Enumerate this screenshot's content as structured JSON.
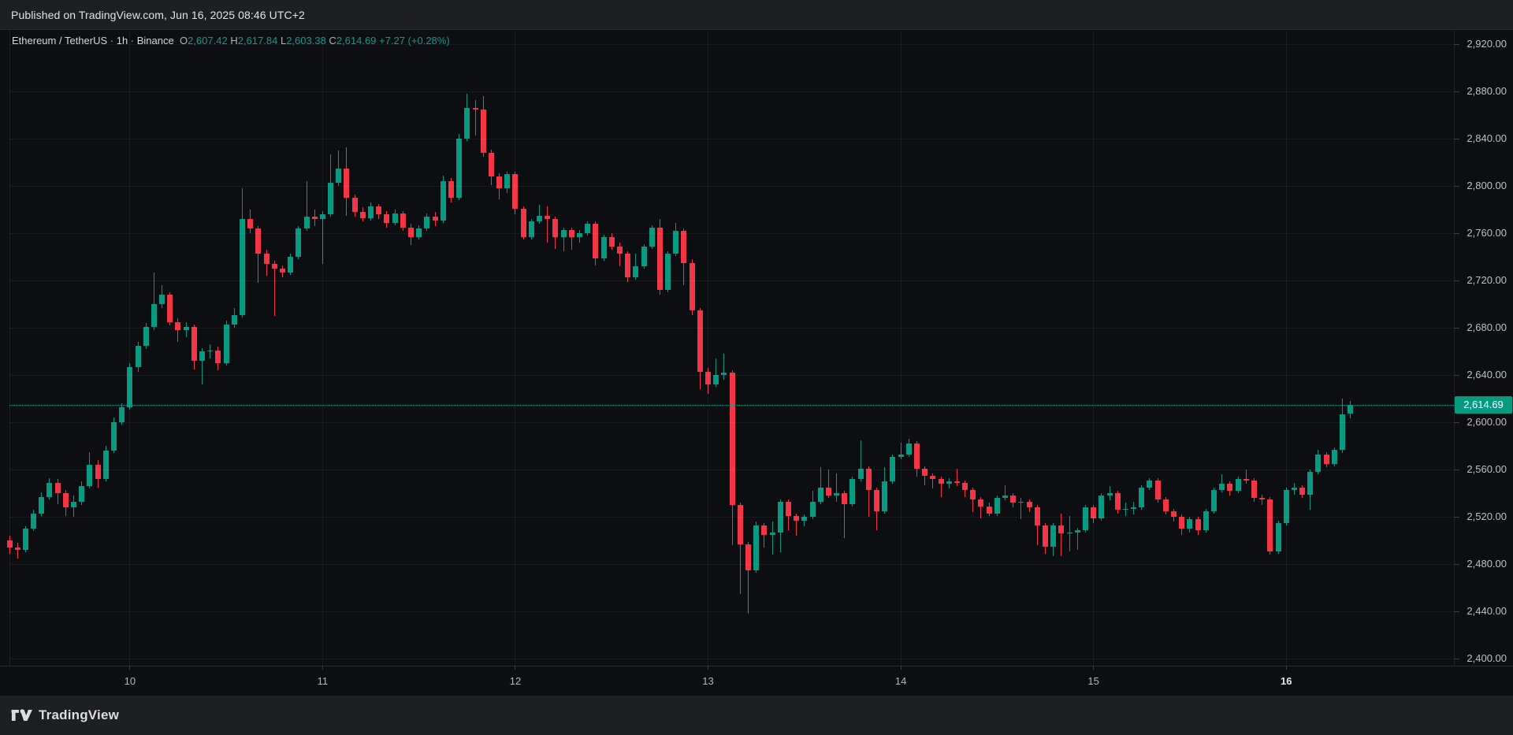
{
  "page": {
    "published_bar": "Published on TradingView.com, Jun 16, 2025 08:46 UTC+2",
    "footer_brand": "TradingView"
  },
  "chart": {
    "legend": {
      "symbol": "Ethereum / TetherUS",
      "sep1": " · ",
      "interval": "1h",
      "sep2": " · ",
      "exchange": "Binance",
      "o_label": "O",
      "o_value": "2,607.42",
      "h_label": "H",
      "h_value": "2,617.84",
      "l_label": "L",
      "l_value": "2,603.38",
      "c_label": "C",
      "c_value": "2,614.69",
      "change": "+7.27 (+0.28%)"
    },
    "last_price": {
      "value": "2,614.69",
      "price": 2614.69
    },
    "colors": {
      "up": "#089981",
      "down": "#F23645",
      "badge_bg": "#089981",
      "badge_text": "#ffffff",
      "accent_text": "#0b9e87"
    },
    "price_axis": {
      "labels": [
        "2,920.00",
        "2,880.00",
        "2,840.00",
        "2,800.00",
        "2,760.00",
        "2,720.00",
        "2,680.00",
        "2,640.00",
        "2,600.00",
        "2,560.00",
        "2,520.00",
        "2,480.00",
        "2,440.00",
        "2,400.00"
      ],
      "values": [
        2920,
        2880,
        2840,
        2800,
        2760,
        2720,
        2680,
        2640,
        2600,
        2560,
        2520,
        2480,
        2440,
        2400
      ]
    },
    "time_axis": {
      "labels": [
        {
          "text": "10",
          "bold": false
        },
        {
          "text": "11",
          "bold": false
        },
        {
          "text": "12",
          "bold": false
        },
        {
          "text": "13",
          "bold": false
        },
        {
          "text": "14",
          "bold": false
        },
        {
          "text": "15",
          "bold": false
        },
        {
          "text": "16",
          "bold": true
        }
      ],
      "bar_indices": [
        15,
        39,
        63,
        87,
        111,
        135,
        159
      ]
    }
  },
  "chart_data": {
    "type": "candlestick",
    "title": "Ethereum / TetherUS · 1h · Binance",
    "interval": "1h",
    "x_description": "Hourly bars, Jun 9 09:00 to Jun 16 08:00 (day-of-month ticks 10-16)",
    "ylim": [
      2394,
      2936
    ],
    "grid": true,
    "last_close": 2614.69,
    "ohlc": [
      [
        2500,
        2504,
        2489,
        2494
      ],
      [
        2494,
        2498,
        2485,
        2492
      ],
      [
        2492,
        2512,
        2490,
        2510
      ],
      [
        2510,
        2526,
        2508,
        2523
      ],
      [
        2523,
        2541,
        2521,
        2537
      ],
      [
        2537,
        2553,
        2535,
        2549
      ],
      [
        2549,
        2552,
        2531,
        2540
      ],
      [
        2540,
        2543,
        2521,
        2528
      ],
      [
        2528,
        2538,
        2520,
        2533
      ],
      [
        2533,
        2550,
        2530,
        2546
      ],
      [
        2546,
        2575,
        2544,
        2564
      ],
      [
        2564,
        2568,
        2545,
        2552
      ],
      [
        2552,
        2580,
        2550,
        2576
      ],
      [
        2576,
        2604,
        2574,
        2600
      ],
      [
        2600,
        2616,
        2598,
        2613
      ],
      [
        2613,
        2650,
        2611,
        2647
      ],
      [
        2647,
        2668,
        2643,
        2665
      ],
      [
        2665,
        2684,
        2662,
        2681
      ],
      [
        2681,
        2727,
        2678,
        2700
      ],
      [
        2700,
        2716,
        2697,
        2708
      ],
      [
        2708,
        2710,
        2682,
        2685
      ],
      [
        2685,
        2688,
        2668,
        2678
      ],
      [
        2678,
        2685,
        2672,
        2681
      ],
      [
        2681,
        2683,
        2645,
        2652
      ],
      [
        2652,
        2663,
        2632,
        2660
      ],
      [
        2660,
        2666,
        2654,
        2661
      ],
      [
        2661,
        2664,
        2644,
        2650
      ],
      [
        2650,
        2686,
        2648,
        2683
      ],
      [
        2683,
        2697,
        2680,
        2691
      ],
      [
        2691,
        2798,
        2689,
        2772
      ],
      [
        2772,
        2780,
        2760,
        2764
      ],
      [
        2764,
        2766,
        2718,
        2743
      ],
      [
        2743,
        2746,
        2724,
        2734
      ],
      [
        2734,
        2737,
        2690,
        2730
      ],
      [
        2730,
        2733,
        2723,
        2727
      ],
      [
        2727,
        2743,
        2725,
        2740
      ],
      [
        2740,
        2766,
        2738,
        2764
      ],
      [
        2764,
        2804,
        2762,
        2774
      ],
      [
        2774,
        2780,
        2766,
        2772
      ],
      [
        2772,
        2779,
        2734,
        2776
      ],
      [
        2776,
        2827,
        2774,
        2803
      ],
      [
        2803,
        2830,
        2800,
        2815
      ],
      [
        2815,
        2833,
        2775,
        2790
      ],
      [
        2790,
        2793,
        2774,
        2778
      ],
      [
        2778,
        2782,
        2770,
        2773
      ],
      [
        2773,
        2786,
        2771,
        2783
      ],
      [
        2783,
        2785,
        2772,
        2776
      ],
      [
        2776,
        2779,
        2765,
        2769
      ],
      [
        2769,
        2780,
        2767,
        2777
      ],
      [
        2777,
        2779,
        2762,
        2765
      ],
      [
        2765,
        2768,
        2750,
        2757
      ],
      [
        2757,
        2767,
        2755,
        2764
      ],
      [
        2764,
        2777,
        2762,
        2774
      ],
      [
        2774,
        2778,
        2766,
        2771
      ],
      [
        2771,
        2809,
        2769,
        2804
      ],
      [
        2804,
        2807,
        2786,
        2790
      ],
      [
        2790,
        2844,
        2788,
        2840
      ],
      [
        2840,
        2878,
        2838,
        2866
      ],
      [
        2866,
        2873,
        2843,
        2865
      ],
      [
        2865,
        2876,
        2825,
        2828
      ],
      [
        2828,
        2831,
        2801,
        2808
      ],
      [
        2808,
        2811,
        2789,
        2798
      ],
      [
        2798,
        2812,
        2794,
        2810
      ],
      [
        2810,
        2812,
        2776,
        2781
      ],
      [
        2781,
        2783,
        2755,
        2757
      ],
      [
        2757,
        2772,
        2755,
        2770
      ],
      [
        2770,
        2784,
        2768,
        2775
      ],
      [
        2775,
        2783,
        2752,
        2772
      ],
      [
        2772,
        2774,
        2747,
        2757
      ],
      [
        2757,
        2765,
        2745,
        2763
      ],
      [
        2763,
        2765,
        2746,
        2757
      ],
      [
        2757,
        2763,
        2752,
        2760
      ],
      [
        2760,
        2770,
        2758,
        2768
      ],
      [
        2768,
        2770,
        2733,
        2739
      ],
      [
        2739,
        2759,
        2737,
        2757
      ],
      [
        2757,
        2760,
        2746,
        2749
      ],
      [
        2749,
        2752,
        2732,
        2743
      ],
      [
        2743,
        2745,
        2719,
        2723
      ],
      [
        2723,
        2743,
        2721,
        2732
      ],
      [
        2732,
        2751,
        2730,
        2749
      ],
      [
        2749,
        2767,
        2747,
        2765
      ],
      [
        2765,
        2772,
        2708,
        2712
      ],
      [
        2712,
        2745,
        2710,
        2743
      ],
      [
        2743,
        2769,
        2741,
        2762
      ],
      [
        2762,
        2764,
        2716,
        2735
      ],
      [
        2735,
        2738,
        2691,
        2695
      ],
      [
        2695,
        2697,
        2628,
        2643
      ],
      [
        2643,
        2646,
        2624,
        2632
      ],
      [
        2632,
        2654,
        2630,
        2640
      ],
      [
        2640,
        2658,
        2636,
        2642
      ],
      [
        2642,
        2644,
        2496,
        2530
      ],
      [
        2530,
        2532,
        2455,
        2497
      ],
      [
        2497,
        2499,
        2438,
        2475
      ],
      [
        2475,
        2516,
        2473,
        2513
      ],
      [
        2513,
        2515,
        2494,
        2505
      ],
      [
        2505,
        2516,
        2488,
        2507
      ],
      [
        2507,
        2535,
        2490,
        2533
      ],
      [
        2533,
        2535,
        2509,
        2521
      ],
      [
        2521,
        2523,
        2504,
        2517
      ],
      [
        2517,
        2522,
        2512,
        2520
      ],
      [
        2520,
        2542,
        2518,
        2533
      ],
      [
        2533,
        2562,
        2531,
        2545
      ],
      [
        2545,
        2560,
        2536,
        2538
      ],
      [
        2538,
        2557,
        2533,
        2540
      ],
      [
        2540,
        2542,
        2502,
        2531
      ],
      [
        2531,
        2554,
        2529,
        2552
      ],
      [
        2552,
        2585,
        2550,
        2561
      ],
      [
        2561,
        2563,
        2520,
        2543
      ],
      [
        2543,
        2545,
        2509,
        2525
      ],
      [
        2525,
        2562,
        2523,
        2550
      ],
      [
        2550,
        2573,
        2548,
        2571
      ],
      [
        2571,
        2583,
        2569,
        2573
      ],
      [
        2573,
        2586,
        2571,
        2582
      ],
      [
        2582,
        2584,
        2554,
        2561
      ],
      [
        2561,
        2563,
        2547,
        2555
      ],
      [
        2555,
        2557,
        2544,
        2552
      ],
      [
        2552,
        2554,
        2537,
        2548
      ],
      [
        2548,
        2553,
        2544,
        2550
      ],
      [
        2550,
        2561,
        2546,
        2549
      ],
      [
        2549,
        2551,
        2537,
        2543
      ],
      [
        2543,
        2545,
        2524,
        2535
      ],
      [
        2535,
        2537,
        2519,
        2529
      ],
      [
        2529,
        2532,
        2521,
        2523
      ],
      [
        2523,
        2538,
        2521,
        2536
      ],
      [
        2536,
        2547,
        2534,
        2538
      ],
      [
        2538,
        2540,
        2528,
        2532
      ],
      [
        2532,
        2536,
        2518,
        2533
      ],
      [
        2533,
        2535,
        2524,
        2528
      ],
      [
        2528,
        2530,
        2496,
        2513
      ],
      [
        2513,
        2515,
        2489,
        2495
      ],
      [
        2495,
        2515,
        2487,
        2513
      ],
      [
        2513,
        2523,
        2487,
        2506
      ],
      [
        2506,
        2521,
        2491,
        2507
      ],
      [
        2507,
        2511,
        2492,
        2509
      ],
      [
        2509,
        2530,
        2507,
        2528
      ],
      [
        2528,
        2530,
        2515,
        2519
      ],
      [
        2519,
        2540,
        2517,
        2538
      ],
      [
        2538,
        2546,
        2534,
        2540
      ],
      [
        2540,
        2542,
        2523,
        2526
      ],
      [
        2526,
        2532,
        2521,
        2527
      ],
      [
        2527,
        2533,
        2522,
        2528
      ],
      [
        2528,
        2547,
        2526,
        2545
      ],
      [
        2545,
        2553,
        2543,
        2551
      ],
      [
        2551,
        2553,
        2532,
        2535
      ],
      [
        2535,
        2537,
        2522,
        2525
      ],
      [
        2525,
        2527,
        2516,
        2520
      ],
      [
        2520,
        2522,
        2505,
        2510
      ],
      [
        2510,
        2520,
        2507,
        2518
      ],
      [
        2518,
        2520,
        2505,
        2509
      ],
      [
        2509,
        2527,
        2507,
        2525
      ],
      [
        2525,
        2545,
        2523,
        2543
      ],
      [
        2543,
        2556,
        2541,
        2548
      ],
      [
        2548,
        2550,
        2538,
        2542
      ],
      [
        2542,
        2554,
        2540,
        2552
      ],
      [
        2552,
        2560,
        2548,
        2551
      ],
      [
        2551,
        2553,
        2533,
        2536
      ],
      [
        2536,
        2539,
        2530,
        2535
      ],
      [
        2535,
        2537,
        2488,
        2491
      ],
      [
        2491,
        2517,
        2489,
        2515
      ],
      [
        2515,
        2545,
        2513,
        2543
      ],
      [
        2543,
        2549,
        2539,
        2545
      ],
      [
        2545,
        2547,
        2536,
        2539
      ],
      [
        2539,
        2560,
        2526,
        2558
      ],
      [
        2558,
        2577,
        2556,
        2573
      ],
      [
        2573,
        2575,
        2562,
        2565
      ],
      [
        2565,
        2579,
        2563,
        2577
      ],
      [
        2577,
        2620,
        2574,
        2607
      ],
      [
        2607.42,
        2617.84,
        2603.38,
        2614.69
      ]
    ]
  }
}
